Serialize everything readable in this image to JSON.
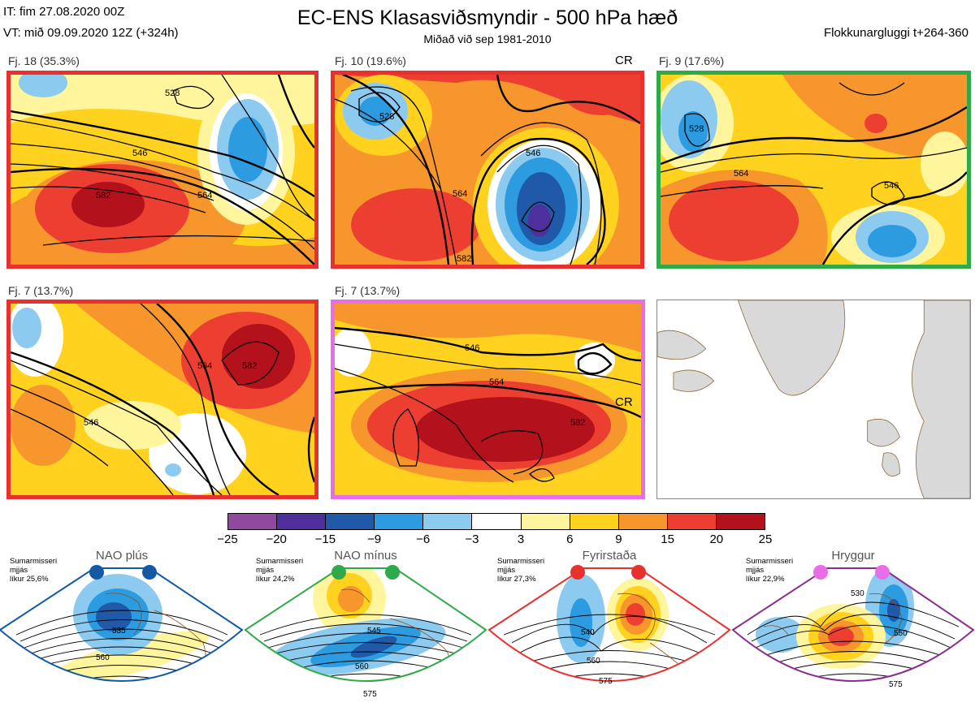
{
  "header": {
    "it_line": "IT: fim 27.08.2020 00Z",
    "vt_line": "VT: mið 09.09.2020 12Z  (+324h)",
    "title": "EC-ENS Klasasviðsmyndir - 500 hPa hæð",
    "subtitle": "Miðað við sep 1981-2010",
    "window_label": "Flokkunargluggi t+264-360"
  },
  "panels": [
    {
      "label": "Fj. 18 (35.3%)",
      "border_color": "#e8312f",
      "contours": [
        "528",
        "546",
        "564",
        "582"
      ]
    },
    {
      "label": "Fj. 10 (19.6%)",
      "border_color": "#e8312f",
      "corner_text": "CR",
      "contours": [
        "528",
        "546",
        "564",
        "582"
      ]
    },
    {
      "label": "Fj. 9 (17.6%)",
      "border_color": "#2eaa4a",
      "contours": [
        "528",
        "546",
        "564"
      ]
    },
    {
      "label": "Fj. 7 (13.7%)",
      "border_color": "#e8312f",
      "contours": [
        "546",
        "564",
        "582"
      ]
    },
    {
      "label": "Fj. 7 (13.7%)",
      "border_color": "#e96ee6",
      "corner_text": "CR",
      "contours": [
        "546",
        "564",
        "582"
      ]
    }
  ],
  "colorbar": {
    "colors": [
      "#8f4aa0",
      "#4e2f9c",
      "#1f59a8",
      "#2c9be0",
      "#8ccbef",
      "#ffffff",
      "#fff59d",
      "#ffd21f",
      "#f7962c",
      "#ec3f31",
      "#b3121d"
    ],
    "ticks": [
      "−25",
      "−20",
      "−15",
      "−9",
      "−6",
      "−3",
      "3",
      "6",
      "9",
      "15",
      "20",
      "25"
    ]
  },
  "regimes": [
    {
      "title": "NAO plús",
      "note1": "Sumarmisseri",
      "note2": "mjjás",
      "note3": "líkur 25,6%",
      "color": "#1359a6",
      "contours": [
        "535",
        "560"
      ]
    },
    {
      "title": "NAO mínus",
      "note1": "Sumarmisseri",
      "note2": "mjjás",
      "note3": "líkur 24,2%",
      "color": "#2eaa4a",
      "contours": [
        "545",
        "560",
        "575"
      ]
    },
    {
      "title": "Fyrirstaða",
      "note1": "Sumarmisseri",
      "note2": "mjjás",
      "note3": "líkur 27,3%",
      "color": "#e8312f",
      "contours": [
        "540",
        "560",
        "575"
      ]
    },
    {
      "title": "Hryggur",
      "note1": "Sumarmisseri",
      "note2": "mjjás",
      "note3": "líkur 22,9%",
      "color": "#e96ee6",
      "contours": [
        "530",
        "550",
        "575"
      ]
    }
  ]
}
